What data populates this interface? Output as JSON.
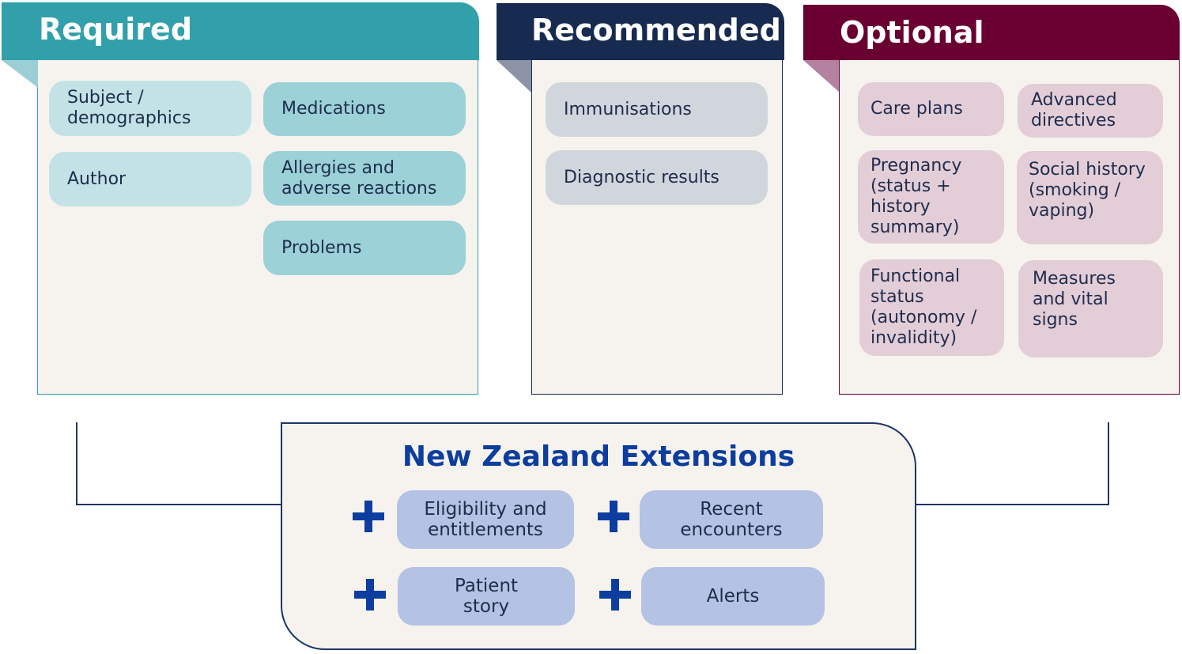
{
  "sections": {
    "required": {
      "title": "Required",
      "items": [
        "Subject /\ndemographics",
        "Medications",
        "Author",
        "Allergies and\nadverse reactions",
        "Problems"
      ]
    },
    "recommended": {
      "title": "Recommended",
      "items": [
        "Immunisations",
        "Diagnostic results"
      ]
    },
    "optional": {
      "title": "Optional",
      "items": [
        "Care plans",
        "Advanced\ndirectives",
        "Pregnancy\n(status +\nhistory\nsummary)",
        "Social history\n(smoking /\nvaping)",
        "Functional\nstatus\n(autonomy /\ninvalidity)",
        "Measures\nand vital\nsigns"
      ]
    }
  },
  "extensions": {
    "title": "New Zealand Extensions",
    "items": [
      "Eligibility and\nentitlements",
      "Recent\nencounters",
      "Patient\nstory",
      "Alerts"
    ]
  },
  "colors": {
    "required": "#31a0aa",
    "recommended": "#172a50",
    "optional": "#6a0032",
    "extension_title": "#0d3d9e"
  }
}
